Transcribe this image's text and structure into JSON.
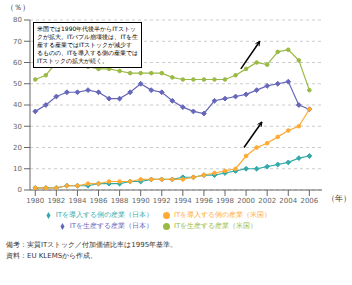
{
  "chart_data": {
    "type": "line",
    "ylabel": "（％）",
    "xlabel": "（年）",
    "x": [
      1980,
      1981,
      1982,
      1983,
      1984,
      1985,
      1986,
      1987,
      1988,
      1989,
      1990,
      1991,
      1992,
      1993,
      1994,
      1995,
      1996,
      1997,
      1998,
      1999,
      2000,
      2001,
      2002,
      2003,
      2004,
      2005,
      2006
    ],
    "series": [
      {
        "name": "ITを生産する産業（日本）",
        "color": "#6666bb",
        "marker": "diamond",
        "values": [
          37,
          40,
          44,
          46,
          46,
          47,
          46,
          43,
          43,
          46,
          50,
          47,
          46,
          42,
          39,
          37,
          36,
          42,
          43,
          44,
          45,
          47,
          49,
          50,
          51,
          40,
          38
        ]
      },
      {
        "name": "ITを導入する側の産業（日本）",
        "color": "#33aaaa",
        "marker": "diamond",
        "values": [
          1,
          1,
          1,
          2,
          2,
          2,
          3,
          3,
          3,
          4,
          4,
          5,
          5,
          5,
          6,
          6,
          7,
          7,
          8,
          9,
          10,
          10,
          11,
          12,
          13,
          15,
          16
        ]
      },
      {
        "name": "ITを生産する産業（米国）",
        "color": "#99bb44",
        "marker": "circle",
        "values": [
          52,
          54,
          60,
          59,
          59,
          58,
          57,
          57,
          56,
          55,
          55,
          55,
          55,
          53,
          52,
          52,
          52,
          52,
          52,
          54,
          57,
          60,
          59,
          65,
          66,
          61,
          47
        ]
      },
      {
        "name": "ITを導入する側の産業（米国）",
        "color": "#ffaa33",
        "marker": "circle",
        "values": [
          1,
          1,
          1,
          2,
          2,
          3,
          3,
          4,
          4,
          4,
          5,
          5,
          5,
          5,
          5,
          6,
          7,
          8,
          9,
          10,
          16,
          20,
          22,
          25,
          28,
          30,
          38
        ]
      }
    ],
    "xlim": [
      1979.5,
      2007.2
    ],
    "xticks": [
      1980,
      1982,
      1984,
      1986,
      1988,
      1990,
      1992,
      1994,
      1996,
      1998,
      2000,
      2002,
      2004,
      2006
    ],
    "ylim": [
      0,
      80
    ],
    "yticks": [
      0,
      10,
      20,
      30,
      40,
      50,
      60,
      70,
      80
    ],
    "grid": "y",
    "legend": "bottom",
    "annotations": [
      {
        "text": "米国では1990年代後半からITストッ\nクが拡大。ITバブル崩壊後は、ITを生\n産する産業ではITストックが減少す\nるものの、ITを導入する側の産業では\nITストックの拡大が続く。"
      }
    ],
    "arrows": [
      {
        "x1": 1999.5,
        "y1": 57,
        "x2": 2001.3,
        "y2": 70
      },
      {
        "x1": 1999.8,
        "y1": 20,
        "x2": 2001.5,
        "y2": 32
      }
    ],
    "notes": [
      "備考：実質ITストック／付加価値比率は1995年基準。",
      "資料：EU KLEMSから作成。"
    ]
  }
}
